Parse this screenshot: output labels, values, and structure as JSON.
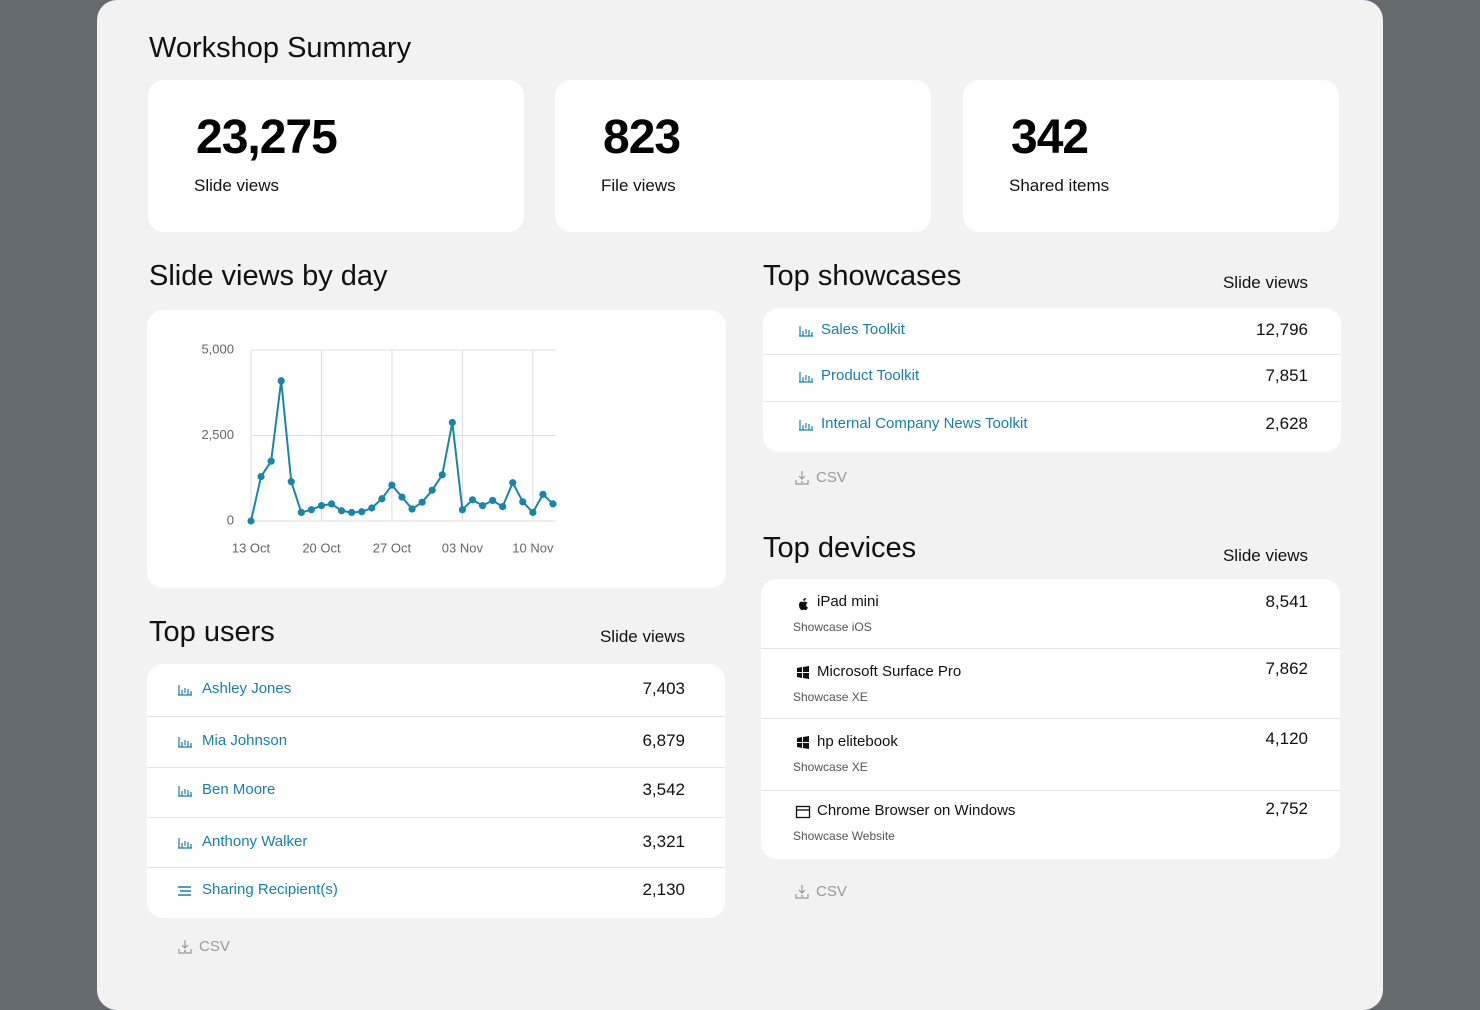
{
  "title": "Workshop Summary",
  "stats": [
    {
      "value": "23,275",
      "label": "Slide views"
    },
    {
      "value": "823",
      "label": "File views"
    },
    {
      "value": "342",
      "label": "Shared items"
    }
  ],
  "chart_title": "Slide views by day",
  "chart_data": {
    "type": "line",
    "categories": [
      "13 Oct",
      null,
      null,
      null,
      null,
      null,
      null,
      "20 Oct",
      null,
      null,
      null,
      null,
      null,
      null,
      "27 Oct",
      null,
      null,
      null,
      null,
      null,
      null,
      "03 Nov",
      null,
      null,
      null,
      null,
      null,
      null,
      "10 Nov",
      null,
      null
    ],
    "series": [
      {
        "name": "Slide views",
        "color": "#1a85a8",
        "values": [
          0,
          1300,
          1750,
          4100,
          1150,
          250,
          330,
          450,
          500,
          300,
          250,
          270,
          380,
          650,
          1050,
          700,
          350,
          550,
          900,
          1350,
          2880,
          330,
          620,
          450,
          600,
          420,
          1120,
          560,
          250,
          780,
          500
        ]
      }
    ],
    "ylim": [
      0,
      5000
    ],
    "yticks": [
      0,
      {
        "value": 2500,
        "label": "2,500"
      },
      {
        "value": 5000,
        "label": "5,000"
      }
    ],
    "grid": true
  },
  "top_users": {
    "title": "Top users",
    "column": "Slide views",
    "csv": "CSV",
    "rows": [
      {
        "name": "Ashley Jones",
        "value": "7,403"
      },
      {
        "name": "Mia Johnson",
        "value": "6,879"
      },
      {
        "name": "Ben Moore",
        "value": "3,542"
      },
      {
        "name": "Anthony Walker",
        "value": "3,321"
      },
      {
        "name": "Sharing Recipient(s)",
        "value": "2,130"
      }
    ]
  },
  "top_showcases": {
    "title": "Top showcases",
    "column": "Slide views",
    "csv": "CSV",
    "rows": [
      {
        "name": "Sales Toolkit",
        "value": "12,796"
      },
      {
        "name": "Product Toolkit",
        "value": "7,851"
      },
      {
        "name": "Internal Company News Toolkit",
        "value": "2,628"
      }
    ]
  },
  "top_devices": {
    "title": "Top devices",
    "column": "Slide views",
    "csv": "CSV",
    "rows": [
      {
        "name": "iPad mini",
        "sub": "Showcase iOS",
        "value": "8,541"
      },
      {
        "name": "Microsoft Surface Pro",
        "sub": "Showcase XE",
        "value": "7,862"
      },
      {
        "name": "hp elitebook",
        "sub": "Showcase XE",
        "value": "4,120"
      },
      {
        "name": "Chrome Browser on Windows",
        "sub": "Showcase Website",
        "value": "2,752"
      }
    ]
  }
}
